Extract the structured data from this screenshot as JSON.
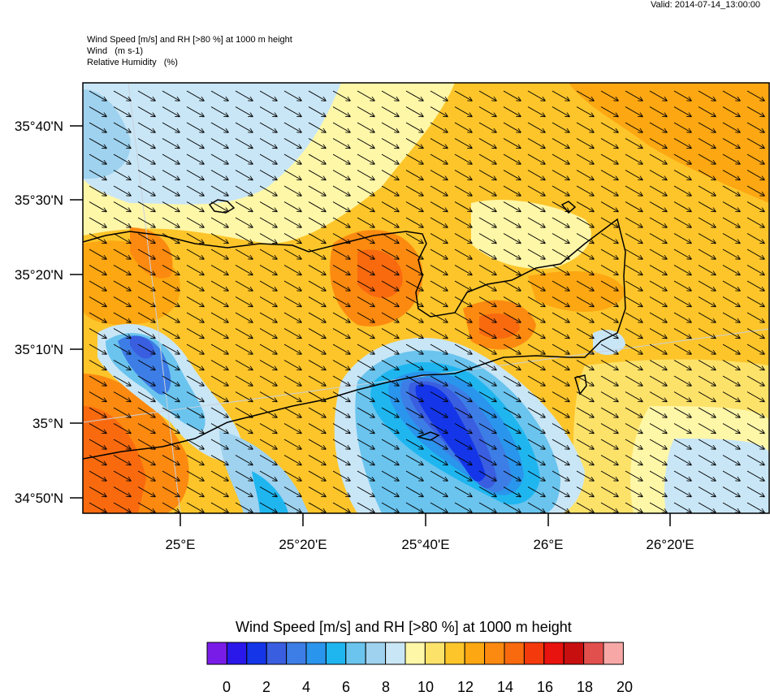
{
  "header": {
    "valid": "Valid: 2014-07-14_13:00:00",
    "title_lines": [
      "Wind Speed [m/s] and RH [>80 %] at 1000 m height",
      "Wind   (m s-1)",
      "Relative Humidity   (%)"
    ]
  },
  "map": {
    "lat_labels": [
      "35°40'N",
      "35°30'N",
      "35°20'N",
      "35°10'N",
      "35°N",
      "34°50'N"
    ],
    "lon_labels": [
      "25°E",
      "25°20'E",
      "25°40'E",
      "26°E",
      "26°20'E"
    ],
    "wind_direction": "northwest"
  },
  "colorbar": {
    "title": "Wind Speed [m/s] and RH [>80 %] at 1000 m height",
    "colors": [
      "#7a1ce8",
      "#2a17ea",
      "#1436e8",
      "#3a5ee0",
      "#3d7de6",
      "#2a95ec",
      "#1fb6f0",
      "#6ac4ee",
      "#9ed2ef",
      "#c9e6f6",
      "#fff7a8",
      "#fde26a",
      "#fdc52a",
      "#fda712",
      "#fc8a10",
      "#f96a0e",
      "#f43a0c",
      "#e8120e",
      "#c80f10",
      "#e2504e",
      "#f7a8a6"
    ],
    "labels": [
      "0",
      "2",
      "4",
      "6",
      "8",
      "10",
      "12",
      "14",
      "16",
      "18",
      "20"
    ]
  }
}
